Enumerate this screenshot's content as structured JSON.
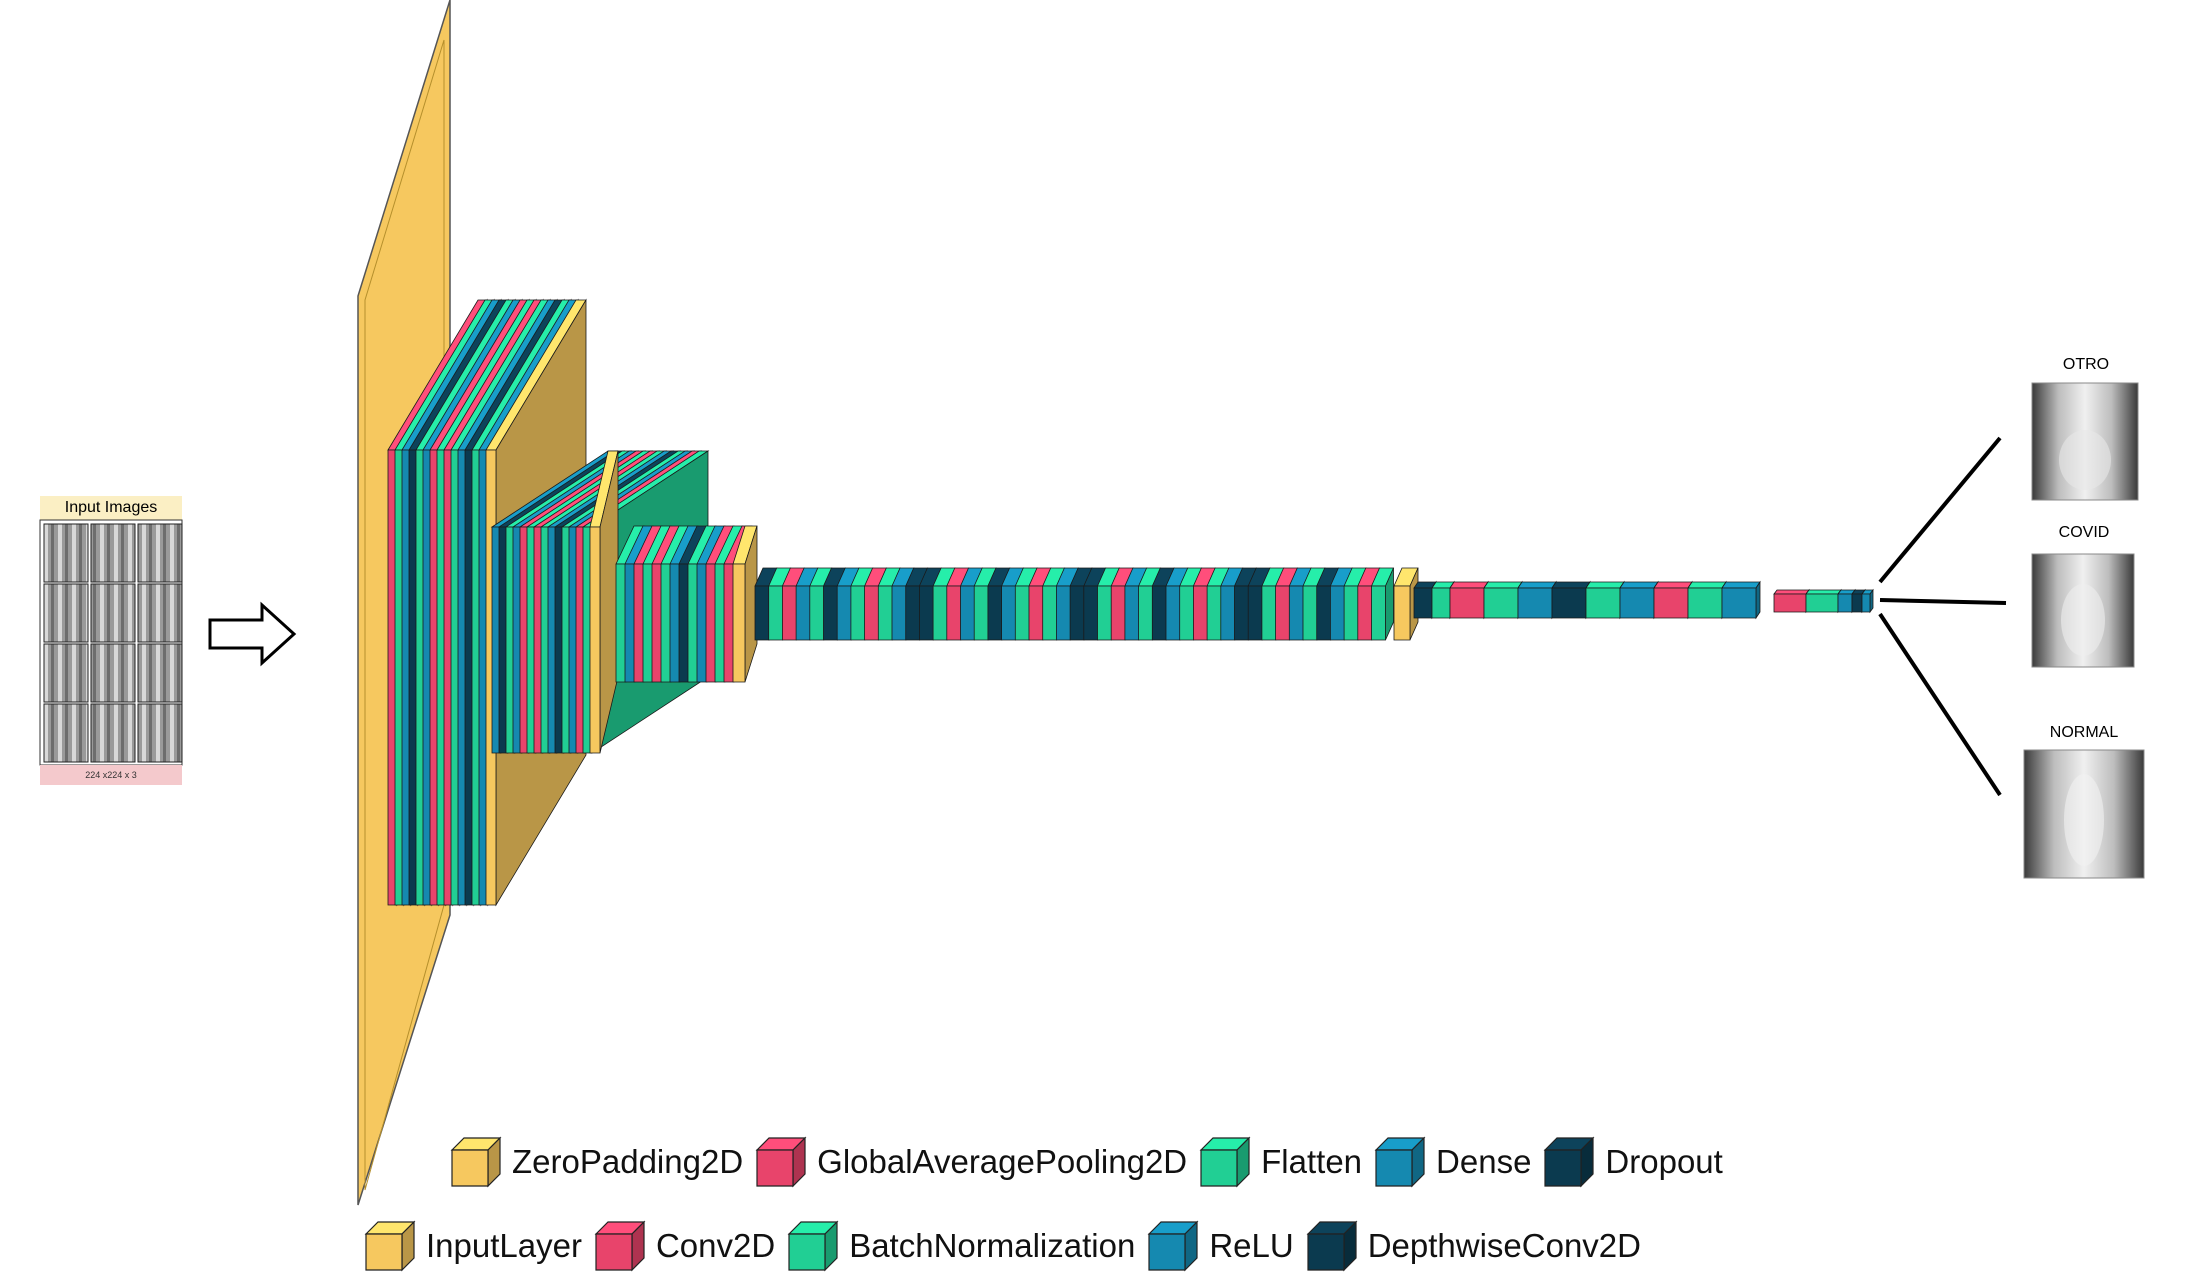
{
  "input": {
    "title": "Input Images",
    "size_label": "224 x224 x 3",
    "title_bg": "#fbefc4",
    "footer_bg": "#f4c9cc"
  },
  "outputs": [
    {
      "label": "OTRO"
    },
    {
      "label": "COVID"
    },
    {
      "label": "NORMAL"
    }
  ],
  "colors": {
    "InputLayer": "#f6c85f",
    "ZeroPadding2D": "#f6c85f",
    "Conv2D": "#e8446b",
    "GlobalAveragePooling2D": "#e8446b",
    "BatchNormalization": "#21cf94",
    "Flatten": "#21cf94",
    "ReLU": "#1589b0",
    "Dense": "#1589b0",
    "DepthwiseConv2D": "#0b3a4f",
    "Dropout": "#0b3a4f"
  },
  "legend": {
    "row1": [
      "ZeroPadding2D",
      "GlobalAveragePooling2D",
      "Flatten",
      "Dense",
      "Dropout"
    ],
    "row2": [
      "InputLayer",
      "Conv2D",
      "BatchNormalization",
      "ReLU",
      "DepthwiseConv2D"
    ]
  }
}
